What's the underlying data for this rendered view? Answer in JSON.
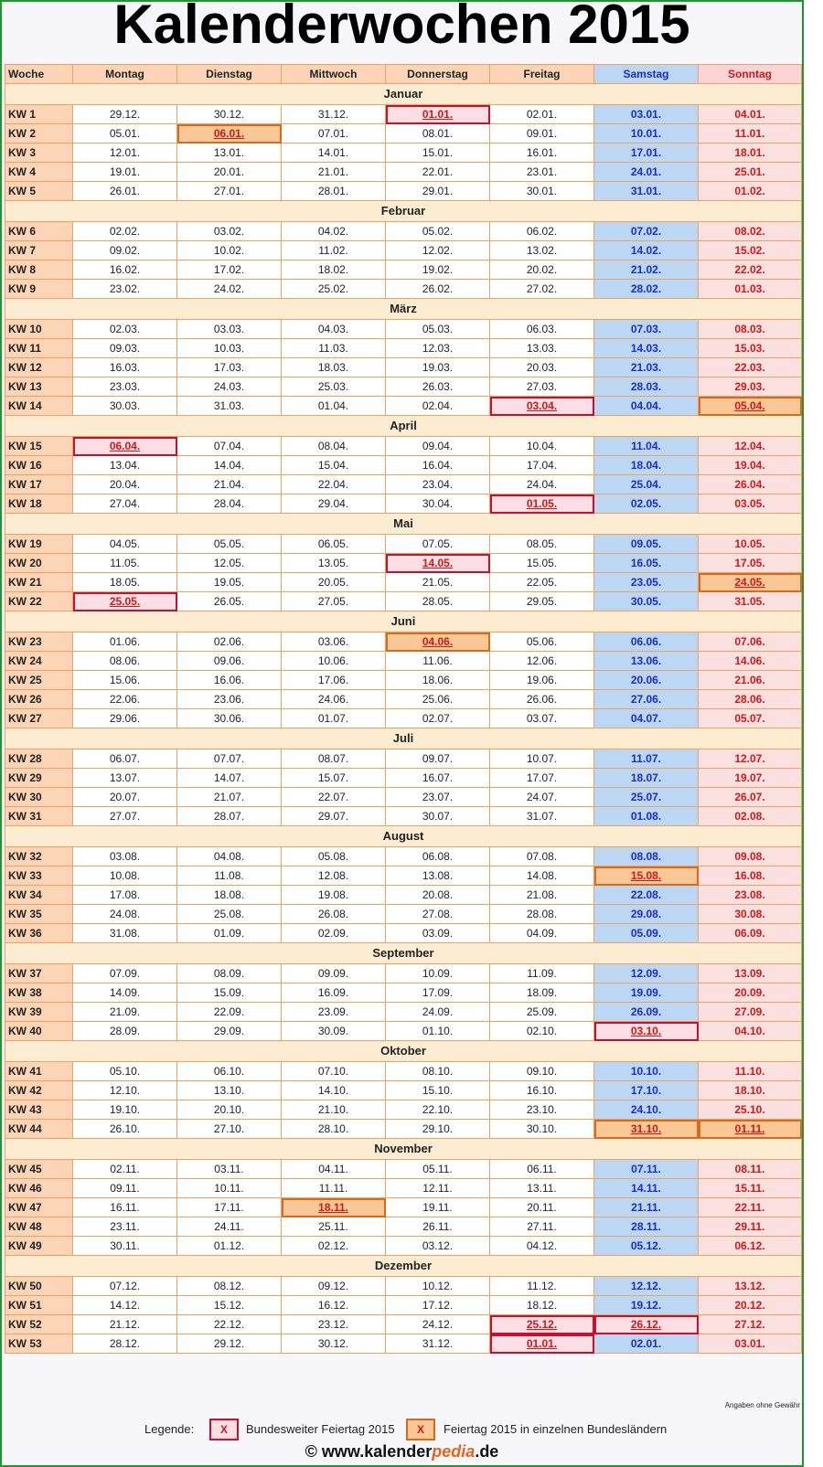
{
  "title": "Kalenderwochen 2015",
  "headers": [
    "Woche",
    "Montag",
    "Dienstag",
    "Mittwoch",
    "Donnerstag",
    "Freitag",
    "Samstag",
    "Sonntag"
  ],
  "colors": {
    "national": "#c8102e",
    "regional": "#d86a1a",
    "saturday": "#1a2bd3",
    "sunday": "#d01818"
  },
  "months": [
    {
      "name": "Januar",
      "weeks": [
        {
          "kw": "KW 1",
          "days": [
            "29.12.",
            "30.12.",
            "31.12.",
            "01.01.",
            "02.01.",
            "03.01.",
            "04.01."
          ],
          "hol": {
            "3": "n"
          }
        },
        {
          "kw": "KW 2",
          "days": [
            "05.01.",
            "06.01.",
            "07.01.",
            "08.01.",
            "09.01.",
            "10.01.",
            "11.01."
          ],
          "hol": {
            "1": "r"
          }
        },
        {
          "kw": "KW 3",
          "days": [
            "12.01.",
            "13.01.",
            "14.01.",
            "15.01.",
            "16.01.",
            "17.01.",
            "18.01."
          ]
        },
        {
          "kw": "KW 4",
          "days": [
            "19.01.",
            "20.01.",
            "21.01.",
            "22.01.",
            "23.01.",
            "24.01.",
            "25.01."
          ]
        },
        {
          "kw": "KW 5",
          "days": [
            "26.01.",
            "27.01.",
            "28.01.",
            "29.01.",
            "30.01.",
            "31.01.",
            "01.02."
          ]
        }
      ]
    },
    {
      "name": "Februar",
      "weeks": [
        {
          "kw": "KW 6",
          "days": [
            "02.02.",
            "03.02.",
            "04.02.",
            "05.02.",
            "06.02.",
            "07.02.",
            "08.02."
          ]
        },
        {
          "kw": "KW 7",
          "days": [
            "09.02.",
            "10.02.",
            "11.02.",
            "12.02.",
            "13.02.",
            "14.02.",
            "15.02."
          ]
        },
        {
          "kw": "KW 8",
          "days": [
            "16.02.",
            "17.02.",
            "18.02.",
            "19.02.",
            "20.02.",
            "21.02.",
            "22.02."
          ]
        },
        {
          "kw": "KW 9",
          "days": [
            "23.02.",
            "24.02.",
            "25.02.",
            "26.02.",
            "27.02.",
            "28.02.",
            "01.03."
          ]
        }
      ]
    },
    {
      "name": "März",
      "weeks": [
        {
          "kw": "KW 10",
          "days": [
            "02.03.",
            "03.03.",
            "04.03.",
            "05.03.",
            "06.03.",
            "07.03.",
            "08.03."
          ]
        },
        {
          "kw": "KW 11",
          "days": [
            "09.03.",
            "10.03.",
            "11.03.",
            "12.03.",
            "13.03.",
            "14.03.",
            "15.03."
          ]
        },
        {
          "kw": "KW 12",
          "days": [
            "16.03.",
            "17.03.",
            "18.03.",
            "19.03.",
            "20.03.",
            "21.03.",
            "22.03."
          ]
        },
        {
          "kw": "KW 13",
          "days": [
            "23.03.",
            "24.03.",
            "25.03.",
            "26.03.",
            "27.03.",
            "28.03.",
            "29.03."
          ]
        },
        {
          "kw": "KW 14",
          "days": [
            "30.03.",
            "31.03.",
            "01.04.",
            "02.04.",
            "03.04.",
            "04.04.",
            "05.04."
          ],
          "hol": {
            "4": "n",
            "6": "r"
          }
        }
      ]
    },
    {
      "name": "April",
      "weeks": [
        {
          "kw": "KW 15",
          "days": [
            "06.04.",
            "07.04.",
            "08.04.",
            "09.04.",
            "10.04.",
            "11.04.",
            "12.04."
          ],
          "hol": {
            "0": "n"
          }
        },
        {
          "kw": "KW 16",
          "days": [
            "13.04.",
            "14.04.",
            "15.04.",
            "16.04.",
            "17.04.",
            "18.04.",
            "19.04."
          ]
        },
        {
          "kw": "KW 17",
          "days": [
            "20.04.",
            "21.04.",
            "22.04.",
            "23.04.",
            "24.04.",
            "25.04.",
            "26.04."
          ]
        },
        {
          "kw": "KW 18",
          "days": [
            "27.04.",
            "28.04.",
            "29.04.",
            "30.04.",
            "01.05.",
            "02.05.",
            "03.05."
          ],
          "hol": {
            "4": "n"
          }
        }
      ]
    },
    {
      "name": "Mai",
      "weeks": [
        {
          "kw": "KW 19",
          "days": [
            "04.05.",
            "05.05.",
            "06.05.",
            "07.05.",
            "08.05.",
            "09.05.",
            "10.05."
          ]
        },
        {
          "kw": "KW 20",
          "days": [
            "11.05.",
            "12.05.",
            "13.05.",
            "14.05.",
            "15.05.",
            "16.05.",
            "17.05."
          ],
          "hol": {
            "3": "n"
          }
        },
        {
          "kw": "KW 21",
          "days": [
            "18.05.",
            "19.05.",
            "20.05.",
            "21.05.",
            "22.05.",
            "23.05.",
            "24.05."
          ],
          "hol": {
            "6": "r"
          }
        },
        {
          "kw": "KW 22",
          "days": [
            "25.05.",
            "26.05.",
            "27.05.",
            "28.05.",
            "29.05.",
            "30.05.",
            "31.05."
          ],
          "hol": {
            "0": "n"
          }
        }
      ]
    },
    {
      "name": "Juni",
      "weeks": [
        {
          "kw": "KW 23",
          "days": [
            "01.06.",
            "02.06.",
            "03.06.",
            "04.06.",
            "05.06.",
            "06.06.",
            "07.06."
          ],
          "hol": {
            "3": "r"
          }
        },
        {
          "kw": "KW 24",
          "days": [
            "08.06.",
            "09.06.",
            "10.06.",
            "11.06.",
            "12.06.",
            "13.06.",
            "14.06."
          ]
        },
        {
          "kw": "KW 25",
          "days": [
            "15.06.",
            "16.06.",
            "17.06.",
            "18.06.",
            "19.06.",
            "20.06.",
            "21.06."
          ]
        },
        {
          "kw": "KW 26",
          "days": [
            "22.06.",
            "23.06.",
            "24.06.",
            "25.06.",
            "26.06.",
            "27.06.",
            "28.06."
          ]
        },
        {
          "kw": "KW 27",
          "days": [
            "29.06.",
            "30.06.",
            "01.07.",
            "02.07.",
            "03.07.",
            "04.07.",
            "05.07."
          ]
        }
      ]
    },
    {
      "name": "Juli",
      "weeks": [
        {
          "kw": "KW 28",
          "days": [
            "06.07.",
            "07.07.",
            "08.07.",
            "09.07.",
            "10.07.",
            "11.07.",
            "12.07."
          ]
        },
        {
          "kw": "KW 29",
          "days": [
            "13.07.",
            "14.07.",
            "15.07.",
            "16.07.",
            "17.07.",
            "18.07.",
            "19.07."
          ]
        },
        {
          "kw": "KW 30",
          "days": [
            "20.07.",
            "21.07.",
            "22.07.",
            "23.07.",
            "24.07.",
            "25.07.",
            "26.07."
          ]
        },
        {
          "kw": "KW 31",
          "days": [
            "27.07.",
            "28.07.",
            "29.07.",
            "30.07.",
            "31.07.",
            "01.08.",
            "02.08."
          ]
        }
      ]
    },
    {
      "name": "August",
      "weeks": [
        {
          "kw": "KW 32",
          "days": [
            "03.08.",
            "04.08.",
            "05.08.",
            "06.08.",
            "07.08.",
            "08.08.",
            "09.08."
          ]
        },
        {
          "kw": "KW 33",
          "days": [
            "10.08.",
            "11.08.",
            "12.08.",
            "13.08.",
            "14.08.",
            "15.08.",
            "16.08."
          ],
          "hol": {
            "5": "r"
          }
        },
        {
          "kw": "KW 34",
          "days": [
            "17.08.",
            "18.08.",
            "19.08.",
            "20.08.",
            "21.08.",
            "22.08.",
            "23.08."
          ]
        },
        {
          "kw": "KW 35",
          "days": [
            "24.08.",
            "25.08.",
            "26.08.",
            "27.08.",
            "28.08.",
            "29.08.",
            "30.08."
          ]
        },
        {
          "kw": "KW 36",
          "days": [
            "31.08.",
            "01.09.",
            "02.09.",
            "03.09.",
            "04.09.",
            "05.09.",
            "06.09."
          ]
        }
      ]
    },
    {
      "name": "September",
      "weeks": [
        {
          "kw": "KW 37",
          "days": [
            "07.09.",
            "08.09.",
            "09.09.",
            "10.09.",
            "11.09.",
            "12.09.",
            "13.09."
          ]
        },
        {
          "kw": "KW 38",
          "days": [
            "14.09.",
            "15.09.",
            "16.09.",
            "17.09.",
            "18.09.",
            "19.09.",
            "20.09."
          ]
        },
        {
          "kw": "KW 39",
          "days": [
            "21.09.",
            "22.09.",
            "23.09.",
            "24.09.",
            "25.09.",
            "26.09.",
            "27.09."
          ]
        },
        {
          "kw": "KW 40",
          "days": [
            "28.09.",
            "29.09.",
            "30.09.",
            "01.10.",
            "02.10.",
            "03.10.",
            "04.10."
          ],
          "hol": {
            "5": "n"
          }
        }
      ]
    },
    {
      "name": "Oktober",
      "weeks": [
        {
          "kw": "KW 41",
          "days": [
            "05.10.",
            "06.10.",
            "07.10.",
            "08.10.",
            "09.10.",
            "10.10.",
            "11.10."
          ]
        },
        {
          "kw": "KW 42",
          "days": [
            "12.10.",
            "13.10.",
            "14.10.",
            "15.10.",
            "16.10.",
            "17.10.",
            "18.10."
          ]
        },
        {
          "kw": "KW 43",
          "days": [
            "19.10.",
            "20.10.",
            "21.10.",
            "22.10.",
            "23.10.",
            "24.10.",
            "25.10."
          ]
        },
        {
          "kw": "KW 44",
          "days": [
            "26.10.",
            "27.10.",
            "28.10.",
            "29.10.",
            "30.10.",
            "31.10.",
            "01.11."
          ],
          "hol": {
            "5": "r",
            "6": "r"
          }
        }
      ]
    },
    {
      "name": "November",
      "weeks": [
        {
          "kw": "KW 45",
          "days": [
            "02.11.",
            "03.11.",
            "04.11.",
            "05.11.",
            "06.11.",
            "07.11.",
            "08.11."
          ]
        },
        {
          "kw": "KW 46",
          "days": [
            "09.11.",
            "10.11.",
            "11.11.",
            "12.11.",
            "13.11.",
            "14.11.",
            "15.11."
          ]
        },
        {
          "kw": "KW 47",
          "days": [
            "16.11.",
            "17.11.",
            "18.11.",
            "19.11.",
            "20.11.",
            "21.11.",
            "22.11."
          ],
          "hol": {
            "2": "r"
          }
        },
        {
          "kw": "KW 48",
          "days": [
            "23.11.",
            "24.11.",
            "25.11.",
            "26.11.",
            "27.11.",
            "28.11.",
            "29.11."
          ]
        },
        {
          "kw": "KW 49",
          "days": [
            "30.11.",
            "01.12.",
            "02.12.",
            "03.12.",
            "04.12.",
            "05.12.",
            "06.12."
          ]
        }
      ]
    },
    {
      "name": "Dezember",
      "weeks": [
        {
          "kw": "KW 50",
          "days": [
            "07.12.",
            "08.12.",
            "09.12.",
            "10.12.",
            "11.12.",
            "12.12.",
            "13.12."
          ]
        },
        {
          "kw": "KW 51",
          "days": [
            "14.12.",
            "15.12.",
            "16.12.",
            "17.12.",
            "18.12.",
            "19.12.",
            "20.12."
          ]
        },
        {
          "kw": "KW 52",
          "days": [
            "21.12.",
            "22.12.",
            "23.12.",
            "24.12.",
            "25.12.",
            "26.12.",
            "27.12."
          ],
          "hol": {
            "4": "n",
            "5": "n"
          }
        },
        {
          "kw": "KW 53",
          "days": [
            "28.12.",
            "29.12.",
            "30.12.",
            "31.12.",
            "01.01.",
            "02.01.",
            "03.01."
          ],
          "hol": {
            "4": "n"
          }
        }
      ]
    }
  ],
  "note": "Angaben ohne Gewähr",
  "legend": {
    "label": "Legende:",
    "marker": "X",
    "national": "Bundesweiter Feiertag 2015",
    "regional": "Feiertag 2015 in einzelnen Bundesländern"
  },
  "footer": {
    "prefix": "© www.kalender",
    "accent": "pedia",
    "suffix": ".de"
  }
}
